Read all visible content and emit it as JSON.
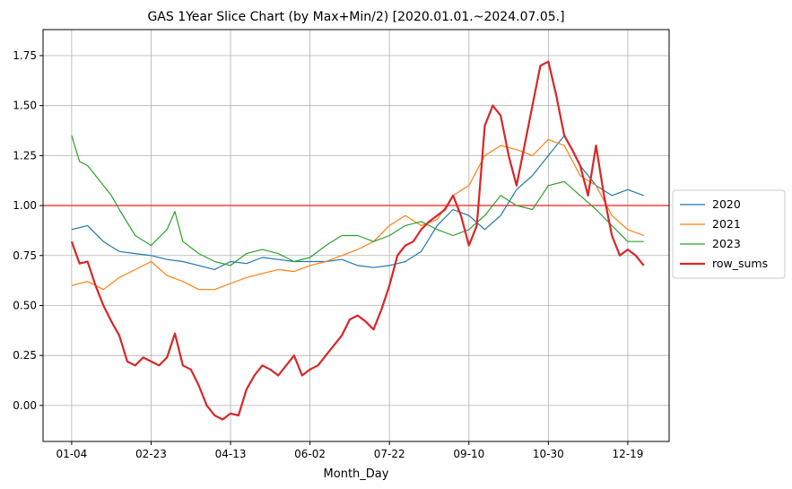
{
  "chart_data": {
    "type": "line",
    "title": "GAS 1Year Slice Chart (by Max+Min/2) [2020.01.01.~2024.07.05.]",
    "xlabel": "Month_Day",
    "ylabel": "",
    "x_ticks": [
      "01-04",
      "02-23",
      "04-13",
      "06-02",
      "07-22",
      "09-10",
      "10-30",
      "12-19"
    ],
    "x_tick_positions": [
      0,
      50,
      100,
      150,
      200,
      250,
      300,
      350
    ],
    "x_range": [
      -18,
      376
    ],
    "ylim": [
      -0.18,
      1.88
    ],
    "y_ticks": [
      "0.00",
      "0.25",
      "0.50",
      "0.75",
      "1.00",
      "1.25",
      "1.50",
      "1.75"
    ],
    "grid": true,
    "legend_position": "center-right-outside",
    "hline": {
      "y": 1.0,
      "color": "#ff0000"
    },
    "series": [
      {
        "name": "2020",
        "color": "#1f77b4",
        "width": 1.2,
        "points": [
          [
            0,
            0.88
          ],
          [
            10,
            0.9
          ],
          [
            20,
            0.82
          ],
          [
            30,
            0.77
          ],
          [
            40,
            0.76
          ],
          [
            50,
            0.75
          ],
          [
            60,
            0.73
          ],
          [
            70,
            0.72
          ],
          [
            80,
            0.7
          ],
          [
            90,
            0.68
          ],
          [
            100,
            0.72
          ],
          [
            110,
            0.71
          ],
          [
            120,
            0.74
          ],
          [
            130,
            0.73
          ],
          [
            140,
            0.72
          ],
          [
            150,
            0.72
          ],
          [
            160,
            0.72
          ],
          [
            170,
            0.73
          ],
          [
            180,
            0.7
          ],
          [
            190,
            0.69
          ],
          [
            200,
            0.7
          ],
          [
            210,
            0.72
          ],
          [
            220,
            0.77
          ],
          [
            230,
            0.9
          ],
          [
            240,
            0.98
          ],
          [
            250,
            0.95
          ],
          [
            260,
            0.88
          ],
          [
            270,
            0.95
          ],
          [
            280,
            1.08
          ],
          [
            290,
            1.15
          ],
          [
            300,
            1.25
          ],
          [
            310,
            1.35
          ],
          [
            320,
            1.2
          ],
          [
            330,
            1.1
          ],
          [
            340,
            1.05
          ],
          [
            350,
            1.08
          ],
          [
            360,
            1.05
          ]
        ]
      },
      {
        "name": "2021",
        "color": "#ff7f0e",
        "width": 1.2,
        "points": [
          [
            0,
            0.6
          ],
          [
            10,
            0.62
          ],
          [
            20,
            0.58
          ],
          [
            30,
            0.64
          ],
          [
            40,
            0.68
          ],
          [
            50,
            0.72
          ],
          [
            60,
            0.65
          ],
          [
            70,
            0.62
          ],
          [
            80,
            0.58
          ],
          [
            90,
            0.58
          ],
          [
            100,
            0.61
          ],
          [
            110,
            0.64
          ],
          [
            120,
            0.66
          ],
          [
            130,
            0.68
          ],
          [
            140,
            0.67
          ],
          [
            150,
            0.7
          ],
          [
            160,
            0.72
          ],
          [
            170,
            0.75
          ],
          [
            180,
            0.78
          ],
          [
            190,
            0.82
          ],
          [
            200,
            0.9
          ],
          [
            210,
            0.95
          ],
          [
            220,
            0.9
          ],
          [
            230,
            0.93
          ],
          [
            240,
            1.05
          ],
          [
            250,
            1.1
          ],
          [
            260,
            1.25
          ],
          [
            270,
            1.3
          ],
          [
            280,
            1.28
          ],
          [
            290,
            1.25
          ],
          [
            300,
            1.33
          ],
          [
            310,
            1.3
          ],
          [
            320,
            1.15
          ],
          [
            330,
            1.1
          ],
          [
            340,
            0.95
          ],
          [
            350,
            0.88
          ],
          [
            360,
            0.85
          ]
        ]
      },
      {
        "name": "2023",
        "color": "#2ca02c",
        "width": 1.2,
        "points": [
          [
            0,
            1.35
          ],
          [
            5,
            1.22
          ],
          [
            10,
            1.2
          ],
          [
            20,
            1.1
          ],
          [
            25,
            1.05
          ],
          [
            30,
            0.98
          ],
          [
            40,
            0.85
          ],
          [
            50,
            0.8
          ],
          [
            60,
            0.88
          ],
          [
            65,
            0.97
          ],
          [
            70,
            0.82
          ],
          [
            80,
            0.76
          ],
          [
            90,
            0.72
          ],
          [
            100,
            0.7
          ],
          [
            110,
            0.76
          ],
          [
            120,
            0.78
          ],
          [
            130,
            0.76
          ],
          [
            140,
            0.72
          ],
          [
            150,
            0.74
          ],
          [
            160,
            0.8
          ],
          [
            170,
            0.85
          ],
          [
            180,
            0.85
          ],
          [
            190,
            0.82
          ],
          [
            200,
            0.85
          ],
          [
            210,
            0.9
          ],
          [
            220,
            0.92
          ],
          [
            230,
            0.88
          ],
          [
            240,
            0.85
          ],
          [
            250,
            0.88
          ],
          [
            260,
            0.95
          ],
          [
            270,
            1.05
          ],
          [
            280,
            1.0
          ],
          [
            290,
            0.98
          ],
          [
            300,
            1.1
          ],
          [
            310,
            1.12
          ],
          [
            320,
            1.05
          ],
          [
            330,
            0.98
          ],
          [
            340,
            0.9
          ],
          [
            350,
            0.82
          ],
          [
            360,
            0.82
          ]
        ]
      },
      {
        "name": "row_sums",
        "color": "#d62728",
        "width": 2.2,
        "points": [
          [
            0,
            0.82
          ],
          [
            5,
            0.71
          ],
          [
            10,
            0.72
          ],
          [
            15,
            0.6
          ],
          [
            20,
            0.5
          ],
          [
            25,
            0.42
          ],
          [
            30,
            0.35
          ],
          [
            35,
            0.22
          ],
          [
            40,
            0.2
          ],
          [
            45,
            0.24
          ],
          [
            50,
            0.22
          ],
          [
            55,
            0.2
          ],
          [
            60,
            0.24
          ],
          [
            65,
            0.36
          ],
          [
            70,
            0.2
          ],
          [
            75,
            0.18
          ],
          [
            80,
            0.1
          ],
          [
            85,
            0.0
          ],
          [
            90,
            -0.05
          ],
          [
            95,
            -0.07
          ],
          [
            100,
            -0.04
          ],
          [
            105,
            -0.05
          ],
          [
            110,
            0.08
          ],
          [
            115,
            0.15
          ],
          [
            120,
            0.2
          ],
          [
            125,
            0.18
          ],
          [
            130,
            0.15
          ],
          [
            140,
            0.25
          ],
          [
            145,
            0.15
          ],
          [
            150,
            0.18
          ],
          [
            155,
            0.2
          ],
          [
            160,
            0.25
          ],
          [
            165,
            0.3
          ],
          [
            170,
            0.35
          ],
          [
            175,
            0.43
          ],
          [
            180,
            0.45
          ],
          [
            185,
            0.42
          ],
          [
            190,
            0.38
          ],
          [
            195,
            0.48
          ],
          [
            200,
            0.6
          ],
          [
            205,
            0.75
          ],
          [
            210,
            0.8
          ],
          [
            215,
            0.82
          ],
          [
            220,
            0.88
          ],
          [
            225,
            0.92
          ],
          [
            230,
            0.95
          ],
          [
            235,
            0.98
          ],
          [
            240,
            1.05
          ],
          [
            245,
            0.95
          ],
          [
            250,
            0.8
          ],
          [
            255,
            0.9
          ],
          [
            260,
            1.4
          ],
          [
            265,
            1.5
          ],
          [
            270,
            1.45
          ],
          [
            275,
            1.25
          ],
          [
            280,
            1.1
          ],
          [
            285,
            1.3
          ],
          [
            290,
            1.5
          ],
          [
            295,
            1.7
          ],
          [
            300,
            1.72
          ],
          [
            305,
            1.55
          ],
          [
            310,
            1.35
          ],
          [
            315,
            1.28
          ],
          [
            320,
            1.2
          ],
          [
            325,
            1.05
          ],
          [
            330,
            1.3
          ],
          [
            335,
            1.05
          ],
          [
            340,
            0.85
          ],
          [
            345,
            0.75
          ],
          [
            350,
            0.78
          ],
          [
            355,
            0.75
          ],
          [
            360,
            0.7
          ]
        ]
      }
    ]
  }
}
